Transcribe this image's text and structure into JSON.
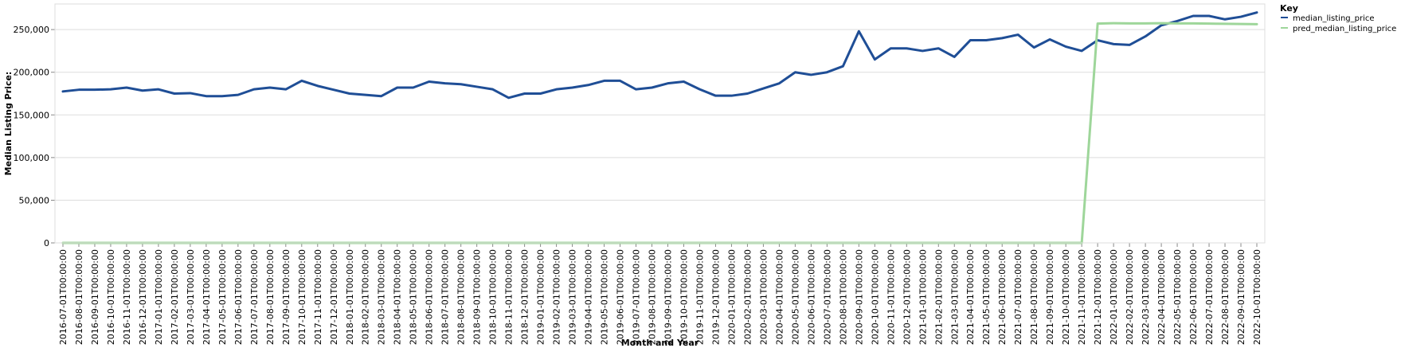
{
  "chart_data": {
    "type": "line",
    "xlabel": "Month and Year",
    "ylabel": "Median Listing Price:",
    "ylim": [
      0,
      280000
    ],
    "y_ticks": [
      0,
      50000,
      100000,
      150000,
      200000,
      250000
    ],
    "grid": true,
    "legend": {
      "title": "Key",
      "placement": "top-right"
    },
    "x": [
      "2016-07-01T00:00:00",
      "2016-08-01T00:00:00",
      "2016-09-01T00:00:00",
      "2016-10-01T00:00:00",
      "2016-11-01T00:00:00",
      "2016-12-01T00:00:00",
      "2017-01-01T00:00:00",
      "2017-02-01T00:00:00",
      "2017-03-01T00:00:00",
      "2017-04-01T00:00:00",
      "2017-05-01T00:00:00",
      "2017-06-01T00:00:00",
      "2017-07-01T00:00:00",
      "2017-08-01T00:00:00",
      "2017-09-01T00:00:00",
      "2017-10-01T00:00:00",
      "2017-11-01T00:00:00",
      "2017-12-01T00:00:00",
      "2018-01-01T00:00:00",
      "2018-02-01T00:00:00",
      "2018-03-01T00:00:00",
      "2018-04-01T00:00:00",
      "2018-05-01T00:00:00",
      "2018-06-01T00:00:00",
      "2018-07-01T00:00:00",
      "2018-08-01T00:00:00",
      "2018-09-01T00:00:00",
      "2018-10-01T00:00:00",
      "2018-11-01T00:00:00",
      "2018-12-01T00:00:00",
      "2019-01-01T00:00:00",
      "2019-02-01T00:00:00",
      "2019-03-01T00:00:00",
      "2019-04-01T00:00:00",
      "2019-05-01T00:00:00",
      "2019-06-01T00:00:00",
      "2019-07-01T00:00:00",
      "2019-08-01T00:00:00",
      "2019-09-01T00:00:00",
      "2019-10-01T00:00:00",
      "2019-11-01T00:00:00",
      "2019-12-01T00:00:00",
      "2020-01-01T00:00:00",
      "2020-02-01T00:00:00",
      "2020-03-01T00:00:00",
      "2020-04-01T00:00:00",
      "2020-05-01T00:00:00",
      "2020-06-01T00:00:00",
      "2020-07-01T00:00:00",
      "2020-08-01T00:00:00",
      "2020-09-01T00:00:00",
      "2020-10-01T00:00:00",
      "2020-11-01T00:00:00",
      "2020-12-01T00:00:00",
      "2021-01-01T00:00:00",
      "2021-02-01T00:00:00",
      "2021-03-01T00:00:00",
      "2021-04-01T00:00:00",
      "2021-05-01T00:00:00",
      "2021-06-01T00:00:00",
      "2021-07-01T00:00:00",
      "2021-08-01T00:00:00",
      "2021-09-01T00:00:00",
      "2021-10-01T00:00:00",
      "2021-11-01T00:00:00",
      "2021-12-01T00:00:00",
      "2022-01-01T00:00:00",
      "2022-02-01T00:00:00",
      "2022-03-01T00:00:00",
      "2022-04-01T00:00:00",
      "2022-05-01T00:00:00",
      "2022-06-01T00:00:00",
      "2022-07-01T00:00:00",
      "2022-08-01T00:00:00",
      "2022-09-01T00:00:00",
      "2022-10-01T00:00:00"
    ],
    "series": [
      {
        "name": "median_listing_price",
        "color": "#1f4e96",
        "values": [
          177500,
          179500,
          179500,
          180000,
          182000,
          178500,
          180000,
          175000,
          175500,
          172000,
          172000,
          173500,
          180000,
          182000,
          180000,
          190000,
          184000,
          179500,
          175000,
          173500,
          172000,
          182000,
          182000,
          189000,
          187000,
          186000,
          183000,
          180000,
          170000,
          175000,
          175000,
          180000,
          182000,
          185000,
          190000,
          190000,
          180000,
          182000,
          187000,
          189000,
          180000,
          172500,
          172500,
          175000,
          181000,
          187000,
          200000,
          197000,
          200000,
          207000,
          248000,
          215000,
          228000,
          228000,
          225000,
          228000,
          218000,
          237500,
          237500,
          240000,
          244000,
          229000,
          238500,
          230000,
          225000,
          237500,
          233000,
          232000,
          242000,
          255000,
          260000,
          266000,
          266000,
          262000,
          265000,
          270000
        ]
      },
      {
        "name": "pred_median_listing_price",
        "color": "#9ed69a",
        "values": [
          0,
          0,
          0,
          0,
          0,
          0,
          0,
          0,
          0,
          0,
          0,
          0,
          0,
          0,
          0,
          0,
          0,
          0,
          0,
          0,
          0,
          0,
          0,
          0,
          0,
          0,
          0,
          0,
          0,
          0,
          0,
          0,
          0,
          0,
          0,
          0,
          0,
          0,
          0,
          0,
          0,
          0,
          0,
          0,
          0,
          0,
          0,
          0,
          0,
          0,
          0,
          0,
          0,
          0,
          0,
          0,
          0,
          0,
          0,
          0,
          0,
          0,
          0,
          0,
          0,
          257000,
          257500,
          257200,
          257300,
          257500,
          257200,
          257300,
          257000,
          256800,
          256600,
          256300
        ]
      }
    ]
  }
}
